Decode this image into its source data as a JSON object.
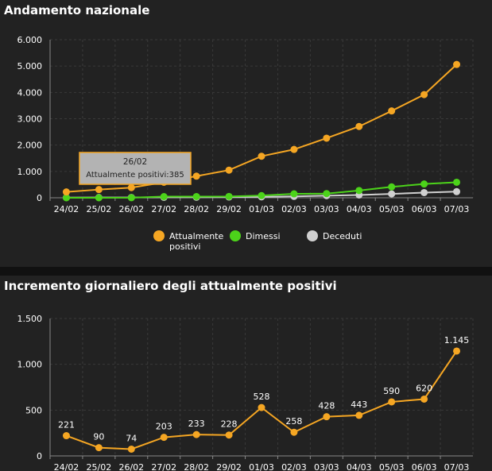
{
  "chart_data": [
    {
      "type": "line",
      "title": "Andamento nazionale",
      "categories": [
        "24/02",
        "25/02",
        "26/02",
        "27/02",
        "28/02",
        "29/02",
        "01/03",
        "02/03",
        "03/03",
        "04/03",
        "05/03",
        "06/03",
        "07/03"
      ],
      "ylim": [
        0,
        6000
      ],
      "yticks": [
        0,
        1000,
        2000,
        3000,
        4000,
        5000,
        6000
      ],
      "ytick_labels": [
        "0",
        "1.000",
        "2.000",
        "3.000",
        "4.000",
        "5.000",
        "6.000"
      ],
      "grid": true,
      "legend_position": "bottom",
      "series": [
        {
          "name": "Attualmente positivi",
          "legend_label": [
            "Attualmente",
            "positivi"
          ],
          "color": "#f5a623",
          "values": [
            221,
            311,
            385,
            588,
            821,
            1049,
            1577,
            1835,
            2263,
            2706,
            3296,
            3916,
            5061
          ]
        },
        {
          "name": "Dimessi",
          "legend_label": [
            "Dimessi"
          ],
          "color": "#4cd31a",
          "values": [
            1,
            1,
            3,
            45,
            46,
            50,
            83,
            149,
            160,
            276,
            414,
            523,
            589
          ]
        },
        {
          "name": "Deceduti",
          "legend_label": [
            "Deceduti"
          ],
          "color": "#d0d0d0",
          "values": [
            7,
            10,
            12,
            17,
            21,
            29,
            34,
            52,
            79,
            107,
            148,
            197,
            233
          ]
        }
      ],
      "tooltip": {
        "category": "26/02",
        "text": "Attualmente positivi:385"
      }
    },
    {
      "type": "line",
      "title": "Incremento giornaliero degli attualmente positivi",
      "categories": [
        "24/02",
        "25/02",
        "26/02",
        "27/02",
        "28/02",
        "29/02",
        "01/03",
        "02/03",
        "03/03",
        "04/03",
        "05/03",
        "06/03",
        "07/03"
      ],
      "ylim": [
        0,
        1500
      ],
      "yticks": [
        0,
        500,
        1000,
        1500
      ],
      "ytick_labels": [
        "0",
        "500",
        "1.000",
        "1.500"
      ],
      "grid": true,
      "series": [
        {
          "name": "Incremento giornaliero",
          "color": "#f5a623",
          "values": [
            221,
            90,
            74,
            203,
            233,
            228,
            528,
            258,
            428,
            443,
            590,
            620,
            1145
          ],
          "labels": [
            "221",
            "90",
            "74",
            "203",
            "233",
            "228",
            "528",
            "258",
            "428",
            "443",
            "590",
            "620",
            "1.145"
          ]
        }
      ]
    }
  ],
  "colors": {
    "panel_bg": "#222222",
    "grid": "#3a3a3a",
    "axis": "#888888",
    "tooltip_bg": "#b3b3b3",
    "tooltip_border": "#f5a623",
    "topbar": "#2a6ecb"
  }
}
